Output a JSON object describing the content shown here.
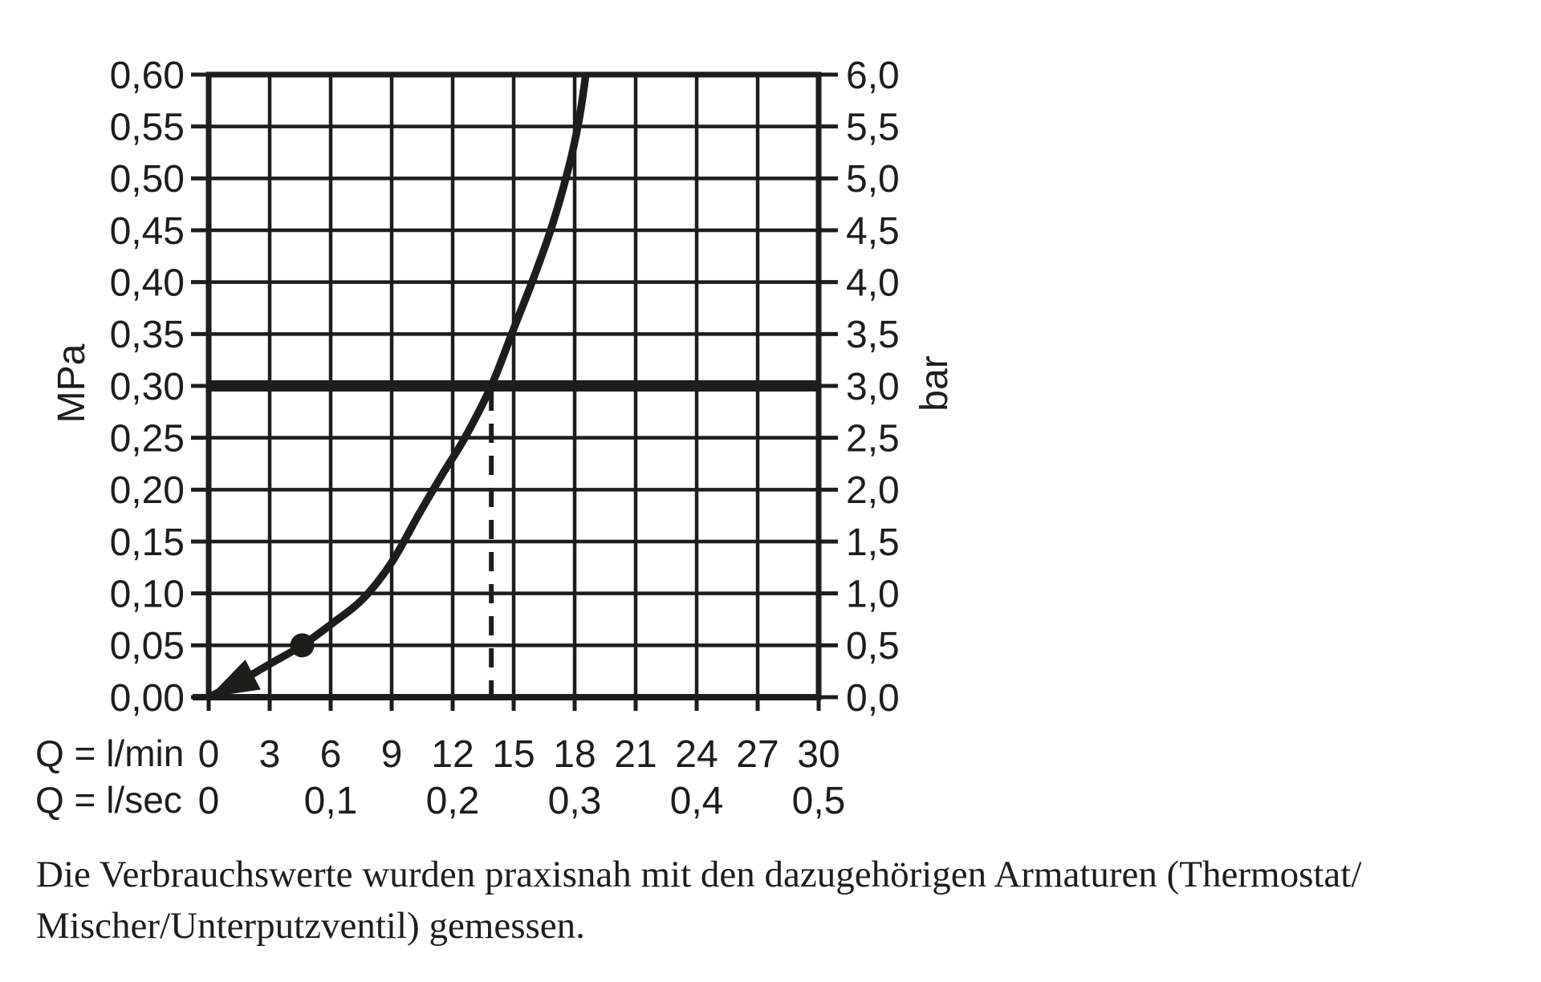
{
  "page": {
    "background": "#ffffff",
    "ink": "#1d1d1b"
  },
  "chart_data": {
    "type": "line",
    "title": "",
    "grid": true,
    "x_axis": {
      "row1_prefix": "Q = l/min",
      "ticks_lmin": [
        0,
        3,
        6,
        9,
        12,
        15,
        18,
        21,
        24,
        27,
        30
      ],
      "row2_prefix": "Q = l/sec",
      "ticks_lsec": [
        {
          "label": "0",
          "at_lmin": 0
        },
        {
          "label": "0,1",
          "at_lmin": 6
        },
        {
          "label": "0,2",
          "at_lmin": 12
        },
        {
          "label": "0,3",
          "at_lmin": 18
        },
        {
          "label": "0,4",
          "at_lmin": 24
        },
        {
          "label": "0,5",
          "at_lmin": 30
        }
      ],
      "range_lmin": [
        0,
        30
      ]
    },
    "y_axis_left": {
      "unit_label": "MPa",
      "tick_labels": [
        "0,60",
        "0,55",
        "0,50",
        "0,45",
        "0,40",
        "0,35",
        "0,30",
        "0,25",
        "0,20",
        "0,15",
        "0,10",
        "0,05",
        "0,00"
      ],
      "tick_step_mpa": 0.05,
      "range_mpa": [
        0,
        0.6
      ]
    },
    "y_axis_right": {
      "unit_label": "bar",
      "tick_labels": [
        "6,0",
        "5,5",
        "5,0",
        "4,5",
        "4,0",
        "3,5",
        "3,0",
        "2,5",
        "2,0",
        "1,5",
        "1,0",
        "0,5",
        "0,0"
      ],
      "tick_step_bar": 0.5,
      "range_bar": [
        0,
        6.0
      ]
    },
    "series": [
      {
        "name": "flow-pressure-curve",
        "points_lmin_mpa": [
          [
            0,
            0
          ],
          [
            1.6,
            0.016
          ],
          [
            3.1,
            0.033
          ],
          [
            4.6,
            0.05
          ],
          [
            6.0,
            0.07
          ],
          [
            7.6,
            0.095
          ],
          [
            9.0,
            0.13
          ],
          [
            10.3,
            0.175
          ],
          [
            11.5,
            0.215
          ],
          [
            12.6,
            0.25
          ],
          [
            13.9,
            0.3
          ],
          [
            15.0,
            0.355
          ],
          [
            16.0,
            0.405
          ],
          [
            16.9,
            0.455
          ],
          [
            17.7,
            0.51
          ],
          [
            18.2,
            0.555
          ],
          [
            18.55,
            0.6
          ]
        ],
        "starts_with_arrowhead_at_origin": true
      }
    ],
    "annotations": {
      "reference_line_mpa": 0.3,
      "reference_line_bar": 3.0,
      "dashed_drop_line_at_lmin": 13.9,
      "marker_dot_lmin_mpa": [
        4.6,
        0.05
      ]
    }
  },
  "caption": {
    "line1": "Die Verbrauchswerte wurden praxisnah mit den dazugehörigen Armaturen (Thermostat/",
    "line2": "Mischer/Unterputzventil) gemessen."
  }
}
